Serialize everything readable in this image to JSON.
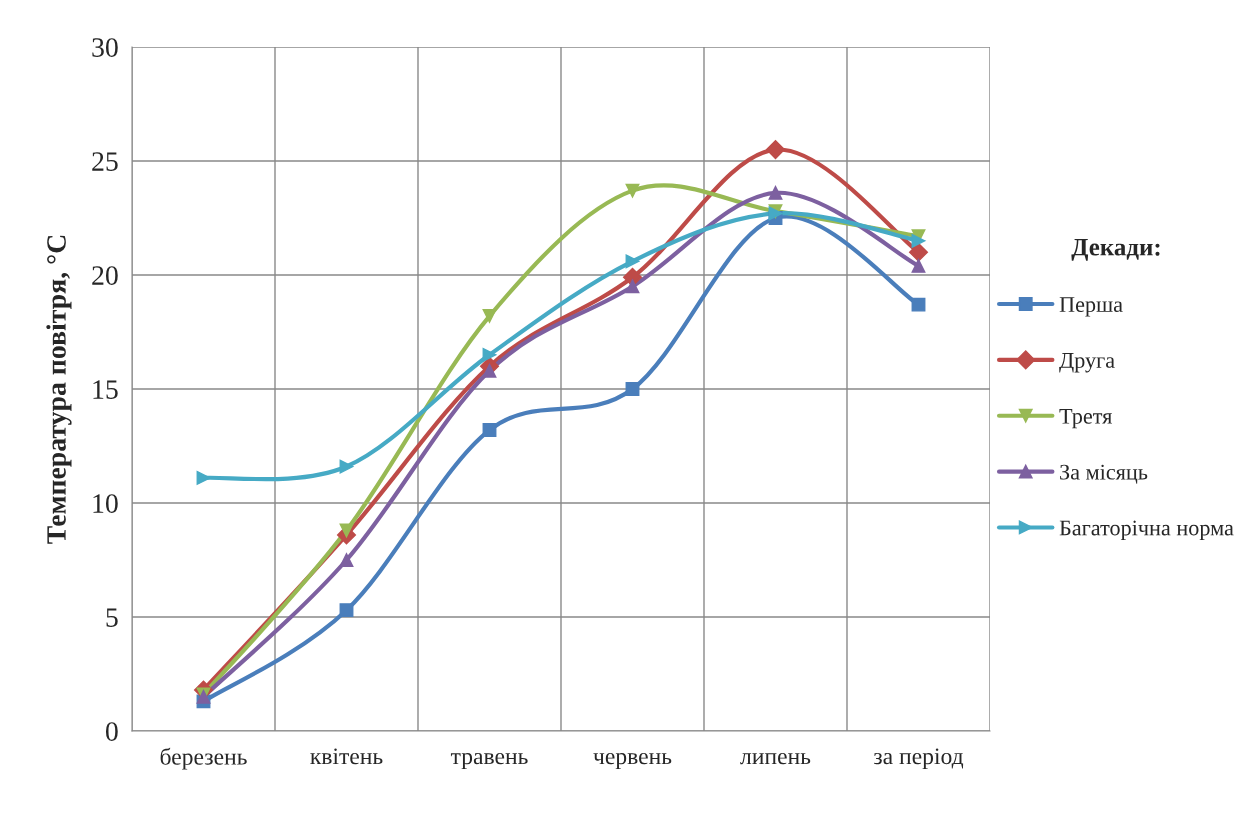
{
  "chart_data": {
    "type": "line",
    "ylabel": "Температура повітря, °C",
    "legend_title": "Декади:",
    "categories": [
      "березень",
      "квітень",
      "травень",
      "червень",
      "липень",
      "за період"
    ],
    "series": [
      {
        "name": "Перша",
        "color": "#4a7ebb",
        "marker": "square",
        "values": [
          1.3,
          5.3,
          13.2,
          15.0,
          22.5,
          18.7
        ]
      },
      {
        "name": "Друга",
        "color": "#be4b48",
        "marker": "diamond",
        "values": [
          1.8,
          8.6,
          16.0,
          19.9,
          25.5,
          21.0
        ]
      },
      {
        "name": "Третя",
        "color": "#98b954",
        "marker": "triangle_down",
        "values": [
          1.6,
          8.8,
          18.2,
          23.7,
          22.8,
          21.7
        ]
      },
      {
        "name": "За місяць",
        "color": "#7d60a0",
        "marker": "triangle",
        "values": [
          1.5,
          7.5,
          15.8,
          19.5,
          23.6,
          20.4
        ]
      },
      {
        "name": "Багаторічна норма",
        "color": "#46aac5",
        "marker": "triangle_right",
        "values": [
          11.1,
          11.6,
          16.5,
          20.6,
          22.7,
          21.5
        ]
      }
    ],
    "ylim": [
      0,
      30
    ],
    "yticks": [
      0,
      5,
      10,
      15,
      20,
      25,
      30
    ],
    "grid": true,
    "legend": "right",
    "line_style": "solid"
  }
}
